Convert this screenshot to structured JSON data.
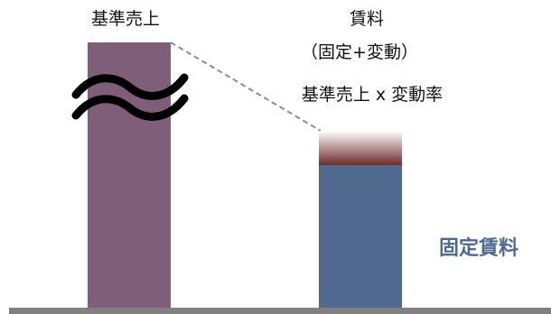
{
  "labels": {
    "base_sales": "基準売上",
    "rent_line1": "賃料",
    "rent_line2": "（固定+変動）",
    "variable_formula": "基準売上 x 変動率",
    "fixed_rent": "固定賃料"
  },
  "colors": {
    "base_sales_bar": "#7e5e78",
    "fixed_rent_bar": "#4f6a8e",
    "variable_top": "#ffffff",
    "variable_bottom": "#6e2a2a",
    "fixed_rent_text": "#4f6a8e",
    "dashed_line": "#8c8c8c",
    "baseline": "#808080",
    "break_symbol": "#000000"
  },
  "icons": {
    "break": "approximately-equal-break-icon"
  }
}
